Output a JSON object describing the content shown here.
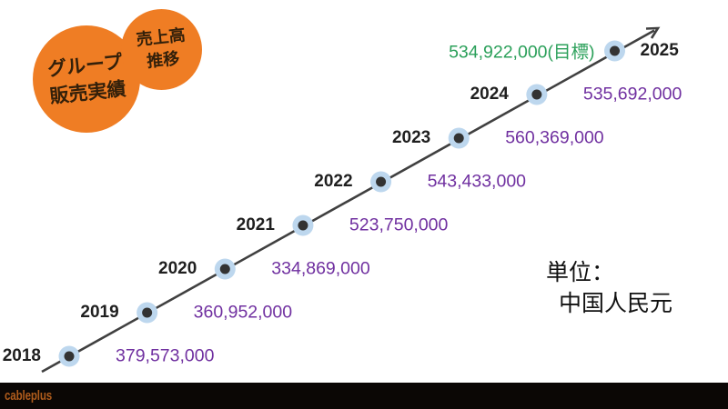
{
  "slide": {
    "badge_primary": {
      "line1": "グループ",
      "line2": "販売実績"
    },
    "badge_secondary": {
      "line1": "売上高",
      "line2": "推移"
    },
    "unit_note": {
      "line1": "単位：",
      "line2": "中国人民元"
    },
    "footer": {
      "logo": "cableplus"
    }
  },
  "chart_data": {
    "type": "line",
    "title": "グループ販売実績 売上高推移",
    "x": [
      "2018",
      "2019",
      "2020",
      "2021",
      "2022",
      "2023",
      "2024",
      "2025"
    ],
    "series": [
      {
        "name": "売上高 (単位: 中国人民元)",
        "values": [
          379573000,
          360952000,
          334869000,
          523750000,
          543433000,
          560369000,
          535692000,
          534922000
        ]
      }
    ],
    "point_value_labels": [
      "379,573,000",
      "360,952,000",
      "334,869,000",
      "523,750,000",
      "543,433,000",
      "560,369,000",
      "535,692,000",
      "534,922,000(目標)"
    ],
    "target_point": "2025",
    "legend_position": "none",
    "grid": false,
    "layout_note": "points evenly spaced on a straight rising arrow from bottom-left to top-right"
  },
  "colors": {
    "bubble_orange": "#EF7D24",
    "value_purple": "#7030A0",
    "target_green": "#2BA05A",
    "line_gray": "#404040",
    "marker_halo": "#BDD7EE",
    "marker_dot": "#333333",
    "footer_bg": "#0B0705",
    "logo_orange": "#B05C1C"
  }
}
